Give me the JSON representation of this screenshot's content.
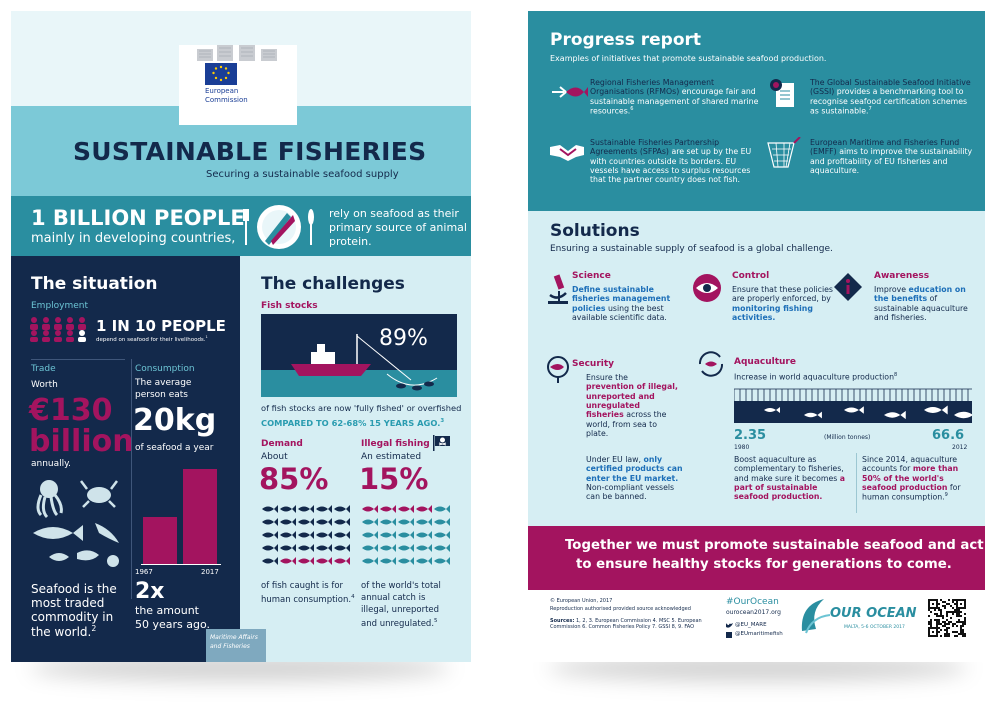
{
  "left": {
    "logo": {
      "org_line1": "European",
      "org_line2": "Commission"
    },
    "title": "SUSTAINABLE FISHERIES",
    "subtitle": "Securing a sustainable seafood supply",
    "banner": {
      "headline": "1 BILLION PEOPLE",
      "sub": "mainly in developing countries,",
      "text_line1": "rely on seafood as their",
      "text_line2": "primary source of animal",
      "text_line3": "protein."
    },
    "situation": {
      "title": "The situation",
      "employment_label": "Employment",
      "employment_value": "1 IN 10 PEOPLE",
      "employment_note": "depend on seafood for their livelihoods.",
      "employment_ref": "1",
      "trade_label": "Trade",
      "trade_worth": "Worth",
      "trade_value_line1": "€130",
      "trade_value_line2": "billion",
      "trade_annually": "annually.",
      "consumption_label": "Consumption",
      "consumption_text_line1": "The average",
      "consumption_text_line2": "person eats",
      "consumption_value": "20kg",
      "consumption_unit": "of seafood a year",
      "bar_start": "1967",
      "bar_end": "2017",
      "bar_ratio": 2,
      "multiplier": "2x",
      "multiplier_text_line1": "the amount",
      "multiplier_text_line2": "50 years ago.",
      "traded_line1": "Seafood is the",
      "traded_line2": "most traded",
      "traded_line3": "commodity in",
      "traded_line4": "the world.",
      "traded_ref": "2"
    },
    "challenges": {
      "title": "The challenges",
      "fish_stocks_label": "Fish stocks",
      "fish_stocks_value": "89%",
      "fish_stocks_text": "of fish stocks are now 'fully fished' or overfished",
      "fish_stocks_compare": "COMPARED TO 62-68% 15 YEARS AGO.",
      "fish_stocks_ref": "3",
      "demand_label": "Demand",
      "demand_about": "About",
      "demand_value": "85%",
      "demand_text_line1": "of fish caught is for",
      "demand_text_line2": "human consumption.",
      "demand_ref": "4",
      "illegal_label": "Illegal fishing",
      "illegal_estimated": "An estimated",
      "illegal_value": "15%",
      "illegal_text_line1": "of the world's total",
      "illegal_text_line2": "annual catch is",
      "illegal_text_line3": "illegal, unreported",
      "illegal_text_line4": "and unregulated.",
      "illegal_ref": "5"
    },
    "footer_tag_line1": "Maritime Affairs",
    "footer_tag_line2": "and Fisheries"
  },
  "right": {
    "progress": {
      "title": "Progress report",
      "subtitle": "Examples of initiatives that promote sustainable seafood production.",
      "rfmo": {
        "lead": "Regional Fisheries Management Organisations (RFMOs)",
        "rest": " encourage fair and sustainable management of shared marine resources.",
        "ref": "6"
      },
      "gssi": {
        "lead": "The Global Sustainable Seafood Initiative (GSSI)",
        "rest": " provides a benchmarking tool to recognise seafood certification schemes as sustainable.",
        "ref": "7"
      },
      "sfpa": {
        "lead": "Sustainable Fisheries Partnership Agreements (SFPAs)",
        "rest": " are set up by the EU with countries outside its borders. EU vessels have access to surplus resources that the partner country does not fish."
      },
      "emff": {
        "lead": "European Maritime and Fisheries Fund (EMFF)",
        "rest": " aims to improve the sustainability and profitability of EU fisheries and aquaculture."
      }
    },
    "solutions": {
      "title": "Solutions",
      "subtitle": "Ensuring a sustainable supply of seafood is a global challenge.",
      "science_label": "Science",
      "science_hl": "Define sustainable fisheries management policies",
      "science_rest": " using the best available scientific data.",
      "control_label": "Control",
      "control_pre": "Ensure that these policies are properly enforced, by ",
      "control_hl": "monitoring fishing activities.",
      "awareness_label": "Awareness",
      "awareness_pre": "Improve ",
      "awareness_hl": "education on the benefits",
      "awareness_rest": " of sustainable aquaculture and fisheries.",
      "security_label": "Security",
      "security_pre": "Ensure the ",
      "security_hl": "prevention of illegal, unreported and unregulated fisheries",
      "security_rest": " across the world, from sea to plate.",
      "security_p2_pre": "Under EU law, ",
      "security_p2_hl": "only certified products can enter the EU market.",
      "security_p2_rest": " Non-compliant vessels can be banned.",
      "aqua_label": "Aquaculture",
      "aqua_text": "Increase in world aquaculture production",
      "aqua_ref": "8",
      "aqua_start_value": "2.35",
      "aqua_start_year": "1980",
      "aqua_end_value": "66.6",
      "aqua_end_year": "2012",
      "aqua_unit": "(Million tonnes)",
      "aqua_p2_pre": "Boost aquaculture as complementary to fisheries, and make sure it becomes ",
      "aqua_p2_hl": "a part of sustainable seafood production.",
      "aqua_p3_pre": "Since 2014, aquaculture accounts for ",
      "aqua_p3_hl": "more than 50% of the world's seafood production",
      "aqua_p3_rest": " for human consumption.",
      "aqua_p3_ref": "9"
    },
    "closing_line1": "Together we must promote sustainable seafood and act",
    "closing_line2": "to ensure healthy stocks for generations to come.",
    "footer": {
      "copyright": "© European Union, 2017",
      "reproduction": "Reproduction authorised provided source acknowledged",
      "sources_label": "Sources:",
      "sources_text": "1, 2, 3. European Commission 4. MSC 5. European Commission 6. Common Fisheries Policy 7. GSSI 8, 9. FAO",
      "hashtag": "#OurOcean",
      "site": "ourocean2017.org",
      "twitter": "@EU_MARE",
      "facebook": "@EUmaritimefish",
      "ocean_logo": "OUR OCEAN",
      "ocean_sub": "MALTA, 5-6 OCTOBER 2017"
    }
  },
  "colors": {
    "navy": "#13294b",
    "teal": "#2a8ea0",
    "light_blue": "#d6eef3",
    "banner_teal": "#6cc4d4",
    "magenta": "#a3145f"
  }
}
